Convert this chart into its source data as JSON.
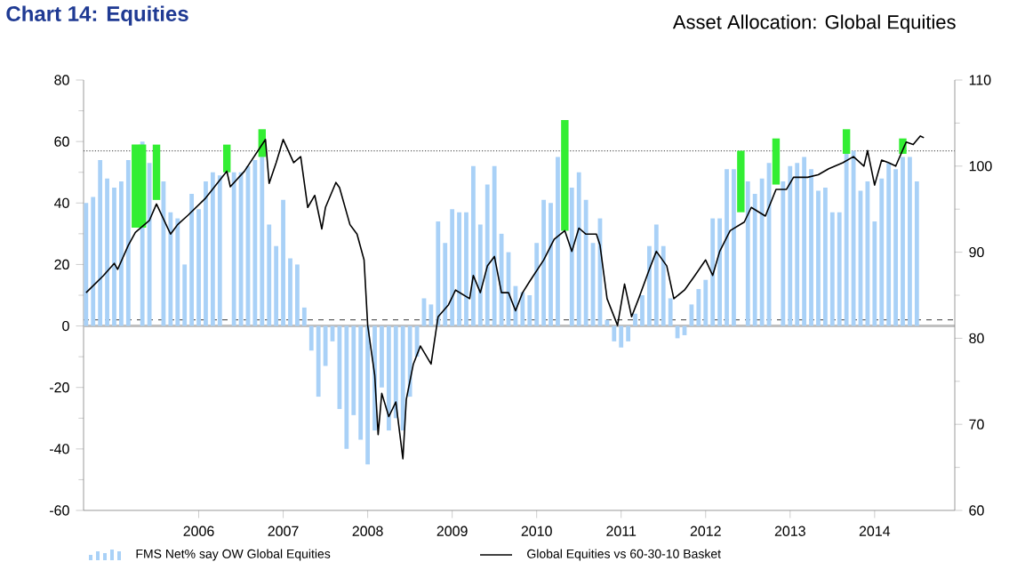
{
  "chart_data": {
    "type": "bar",
    "title": "Chart 14: Equities",
    "subtitle": "Asset Allocation: Global Equities",
    "x": [
      "2004-09",
      "2004-10",
      "2004-11",
      "2004-12",
      "2005-01",
      "2005-02",
      "2005-03",
      "2005-04",
      "2005-05",
      "2005-06",
      "2005-07",
      "2005-08",
      "2005-09",
      "2005-10",
      "2005-11",
      "2005-12",
      "2006-01",
      "2006-02",
      "2006-03",
      "2006-04",
      "2006-05",
      "2006-06",
      "2006-07",
      "2006-08",
      "2006-09",
      "2006-10",
      "2006-11",
      "2006-12",
      "2007-01",
      "2007-02",
      "2007-03",
      "2007-04",
      "2007-05",
      "2007-06",
      "2007-07",
      "2007-08",
      "2007-09",
      "2007-10",
      "2007-11",
      "2007-12",
      "2008-01",
      "2008-02",
      "2008-03",
      "2008-04",
      "2008-05",
      "2008-06",
      "2008-07",
      "2008-08",
      "2008-09",
      "2008-10",
      "2008-11",
      "2008-12",
      "2009-01",
      "2009-02",
      "2009-03",
      "2009-04",
      "2009-05",
      "2009-06",
      "2009-07",
      "2009-08",
      "2009-09",
      "2009-10",
      "2009-11",
      "2009-12",
      "2010-01",
      "2010-02",
      "2010-03",
      "2010-04",
      "2010-05",
      "2010-06",
      "2010-07",
      "2010-08",
      "2010-09",
      "2010-10",
      "2010-11",
      "2010-12",
      "2011-01",
      "2011-02",
      "2011-03",
      "2011-04",
      "2011-05",
      "2011-06",
      "2011-07",
      "2011-08",
      "2011-09",
      "2011-10",
      "2011-11",
      "2011-12",
      "2012-01",
      "2012-02",
      "2012-03",
      "2012-04",
      "2012-05",
      "2012-06",
      "2012-07",
      "2012-08",
      "2012-09",
      "2012-10",
      "2012-11",
      "2012-12",
      "2013-01",
      "2013-02",
      "2013-03",
      "2013-04",
      "2013-05",
      "2013-06",
      "2013-07",
      "2013-08",
      "2013-09",
      "2013-10",
      "2013-11",
      "2013-12",
      "2014-01",
      "2014-02",
      "2014-03",
      "2014-04",
      "2014-05",
      "2014-06",
      "2014-07"
    ],
    "series": [
      {
        "name": "FMS Net% say OW Global Equities",
        "color": "#a9d1f7",
        "values": [
          40,
          42,
          54,
          48,
          45,
          47,
          54,
          null,
          60,
          53,
          null,
          47,
          37,
          35,
          20,
          43,
          38,
          47,
          50,
          49,
          null,
          50,
          50,
          52,
          54,
          57,
          33,
          26,
          41,
          22,
          20,
          6,
          -8,
          -23,
          -13,
          -5,
          -27,
          -40,
          -29,
          -37,
          -45,
          -34,
          -20,
          -34,
          -30,
          -34,
          -23,
          -10,
          9,
          7,
          34,
          27,
          38,
          37,
          37,
          52,
          33,
          46,
          52,
          30,
          24,
          13,
          11,
          10,
          27,
          41,
          40,
          55,
          null,
          45,
          50,
          41,
          27,
          35,
          2,
          -5,
          -7,
          -5,
          4,
          10,
          26,
          33,
          26,
          9,
          -4,
          -3,
          7,
          12,
          15,
          35,
          35,
          51,
          51,
          null,
          47,
          43,
          48,
          53,
          null,
          47,
          52,
          53,
          55,
          51,
          44,
          45,
          37,
          37,
          57,
          57,
          44,
          47,
          34,
          48,
          53,
          51,
          55,
          55,
          47
        ]
      },
      {
        "color": "#33ee33",
        "base": [
          null,
          null,
          null,
          null,
          null,
          null,
          null,
          32,
          32,
          null,
          41,
          null,
          null,
          null,
          null,
          null,
          null,
          null,
          null,
          null,
          50,
          null,
          null,
          null,
          null,
          55,
          null,
          null,
          null,
          null,
          null,
          null,
          null,
          null,
          null,
          null,
          null,
          null,
          null,
          null,
          null,
          null,
          null,
          null,
          null,
          null,
          null,
          null,
          null,
          null,
          null,
          null,
          null,
          null,
          null,
          null,
          null,
          null,
          null,
          null,
          null,
          null,
          null,
          null,
          null,
          null,
          null,
          null,
          31,
          null,
          null,
          null,
          null,
          null,
          null,
          null,
          null,
          null,
          null,
          null,
          null,
          null,
          null,
          null,
          null,
          null,
          null,
          null,
          null,
          null,
          null,
          null,
          null,
          37,
          null,
          null,
          null,
          null,
          46,
          null,
          null,
          null,
          null,
          null,
          null,
          null,
          null,
          null,
          56,
          null,
          null,
          null,
          null,
          null,
          null,
          null,
          56,
          null,
          null
        ],
        "values": [
          null,
          null,
          null,
          null,
          null,
          null,
          null,
          27,
          27,
          null,
          18,
          null,
          null,
          null,
          null,
          null,
          null,
          null,
          null,
          null,
          9,
          null,
          null,
          null,
          null,
          9,
          null,
          null,
          null,
          null,
          null,
          null,
          null,
          null,
          null,
          null,
          null,
          null,
          null,
          null,
          null,
          null,
          null,
          null,
          null,
          null,
          null,
          null,
          null,
          null,
          null,
          null,
          null,
          null,
          null,
          null,
          null,
          null,
          null,
          null,
          null,
          null,
          null,
          null,
          null,
          null,
          null,
          null,
          36,
          null,
          null,
          null,
          null,
          null,
          null,
          null,
          null,
          null,
          null,
          null,
          null,
          null,
          null,
          null,
          null,
          null,
          null,
          null,
          null,
          null,
          null,
          null,
          null,
          20,
          null,
          null,
          null,
          null,
          15,
          null,
          null,
          null,
          null,
          null,
          null,
          null,
          null,
          null,
          8,
          null,
          null,
          null,
          null,
          null,
          null,
          null,
          5,
          null,
          null
        ]
      },
      {
        "name": "Global Equities vs 60-30-10 Basket",
        "type": "line",
        "axis": "y2",
        "color": "#000000",
        "x": [
          "2004-09-01",
          "2004-10-01",
          "2004-11-16",
          "2005-01-01",
          "2005-01-16",
          "2005-03-01",
          "2005-04-01",
          "2005-06-01",
          "2005-07-01",
          "2005-09-01",
          "2005-10-01",
          "2005-11-16",
          "2006-02-01",
          "2006-05-01",
          "2006-05-16",
          "2006-07-16",
          "2006-10-16",
          "2006-11-01",
          "2006-12-01",
          "2007-01-01",
          "2007-02-16",
          "2007-03-16",
          "2007-04-16",
          "2007-05-16",
          "2007-06-16",
          "2007-07-01",
          "2007-08-16",
          "2007-09-01",
          "2007-10-16",
          "2007-11-16",
          "2007-12-16",
          "2008-01-01",
          "2008-02-01",
          "2008-02-16",
          "2008-03-01",
          "2008-04-01",
          "2008-05-01",
          "2008-06-01",
          "2008-06-16",
          "2008-07-16",
          "2008-08-16",
          "2008-10-01",
          "2008-11-01",
          "2008-12-16",
          "2009-01-16",
          "2009-03-16",
          "2009-04-01",
          "2009-05-01",
          "2009-06-01",
          "2009-07-01",
          "2009-08-01",
          "2009-09-01",
          "2009-10-01",
          "2009-11-01",
          "2009-12-01",
          "2010-02-01",
          "2010-03-16",
          "2010-05-01",
          "2010-06-01",
          "2010-07-01",
          "2010-08-01",
          "2010-09-16",
          "2010-10-01",
          "2010-11-01",
          "2010-12-16",
          "2011-01-16",
          "2011-02-16",
          "2011-03-16",
          "2011-05-01",
          "2011-06-01",
          "2011-07-16",
          "2011-08-16",
          "2011-10-01",
          "2011-11-16",
          "2012-01-01",
          "2012-02-01",
          "2012-03-01",
          "2012-04-16",
          "2012-06-16",
          "2012-07-16",
          "2012-09-16",
          "2012-11-01",
          "2012-12-16",
          "2013-01-16",
          "2013-03-16",
          "2013-05-01",
          "2013-06-16",
          "2013-08-16",
          "2013-10-01",
          "2013-11-16",
          "2013-12-01",
          "2014-01-01",
          "2014-02-01",
          "2014-03-01",
          "2014-04-01",
          "2014-05-16",
          "2014-06-16",
          "2014-07-16",
          "2014-08-01"
        ],
        "values": [
          85.3,
          86.1,
          87.3,
          88.7,
          88.0,
          90.8,
          92.3,
          93.7,
          95.6,
          92.1,
          93.2,
          94.3,
          96.3,
          99.4,
          97.6,
          99.4,
          103.1,
          98.0,
          100.4,
          103.1,
          100.4,
          101.1,
          95.2,
          96.6,
          92.7,
          95.2,
          98.1,
          97.5,
          93.2,
          92.1,
          89.1,
          81.5,
          75.7,
          68.8,
          73.6,
          70.9,
          72.6,
          66.0,
          72.9,
          77.0,
          79.1,
          77.0,
          82.5,
          83.9,
          85.6,
          84.6,
          87.3,
          85.3,
          88.4,
          89.5,
          85.3,
          85.3,
          83.2,
          85.3,
          86.6,
          89.1,
          91.5,
          92.5,
          90.1,
          92.8,
          92.1,
          92.1,
          90.8,
          84.6,
          81.5,
          86.3,
          82.5,
          84.6,
          88.0,
          90.1,
          88.4,
          84.6,
          85.6,
          87.3,
          89.1,
          87.3,
          90.1,
          92.5,
          93.5,
          95.2,
          94.2,
          97.3,
          97.3,
          98.7,
          98.7,
          99.0,
          99.7,
          100.4,
          101.1,
          100.0,
          101.8,
          97.8,
          100.7,
          100.4,
          100.0,
          102.8,
          102.5,
          103.5,
          103.3
        ]
      }
    ],
    "xlim": [
      "2004-08-21",
      "2014-12-13"
    ],
    "xticks": [
      {
        "value": "2006-01",
        "label": "2006"
      },
      {
        "value": "2007-01",
        "label": "2007"
      },
      {
        "value": "2008-01",
        "label": "2008"
      },
      {
        "value": "2009-01",
        "label": "2009"
      },
      {
        "value": "2010-01",
        "label": "2010"
      },
      {
        "value": "2011-01",
        "label": "2011"
      },
      {
        "value": "2012-01",
        "label": "2012"
      },
      {
        "value": "2013-01",
        "label": "2013"
      },
      {
        "value": "2014-01",
        "label": "2014"
      }
    ],
    "ylim": [
      -60,
      80
    ],
    "yticks": [
      -60,
      -40,
      -20,
      0,
      20,
      40,
      60,
      80
    ],
    "y2lim": [
      60,
      110
    ],
    "y2ticks": [
      60,
      70,
      80,
      90,
      100,
      110
    ],
    "ref_lines": [
      {
        "axis": "y",
        "value": 0,
        "color": "#c0c0c0",
        "line_style": "solid"
      },
      {
        "axis": "y",
        "value": 57,
        "color": "#606060",
        "line_style": "dotted"
      },
      {
        "axis": "y",
        "value": 2,
        "color": "#606060",
        "line_style": "dashed"
      }
    ],
    "legend": "bottom"
  }
}
